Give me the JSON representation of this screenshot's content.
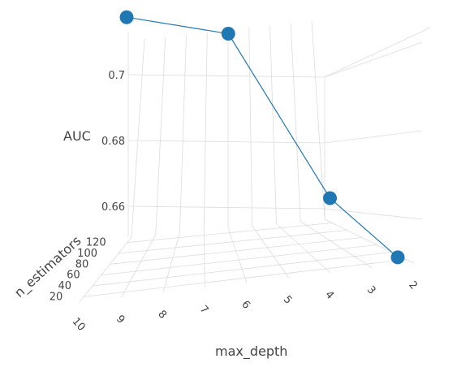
{
  "chart_data": {
    "type": "scatter3d",
    "mode": "lines+markers",
    "axes": {
      "x": {
        "title": "max_depth",
        "range": [
          2,
          10
        ],
        "ticks": [
          10,
          9,
          8,
          7,
          6,
          5,
          4,
          3,
          2
        ]
      },
      "y": {
        "title": "n_estimators",
        "ticks": [
          20,
          40,
          60,
          80,
          100,
          120
        ]
      },
      "z": {
        "title": "AUC",
        "ticks": [
          0.66,
          0.68,
          0.7
        ]
      }
    },
    "series": [
      {
        "points": [
          {
            "max_depth": 10,
            "n_estimators": 120,
            "auc": 0.715
          },
          {
            "max_depth": 7,
            "n_estimators": 120,
            "auc": 0.71
          },
          {
            "max_depth": 4,
            "n_estimators": 120,
            "auc": 0.66
          },
          {
            "max_depth": 2,
            "n_estimators": 120,
            "auc": 0.642
          }
        ],
        "color": "#1f77b4"
      }
    ],
    "grid": true,
    "colors": {
      "series": "#1f77b4",
      "grid": "#dcdcdc",
      "text": "#444444"
    }
  }
}
